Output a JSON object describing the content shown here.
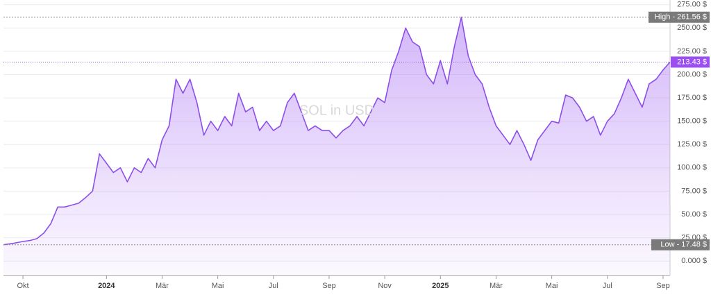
{
  "chart_data": {
    "type": "line",
    "title": "SOL in USD",
    "x": [
      -0.7,
      -0.35,
      0,
      0.25,
      0.5,
      0.75,
      1,
      1.25,
      1.5,
      1.75,
      2,
      2.25,
      2.5,
      2.75,
      3,
      3.25,
      3.5,
      3.75,
      4,
      4.25,
      4.5,
      4.75,
      5,
      5.25,
      5.5,
      5.75,
      6,
      6.25,
      6.5,
      6.75,
      7,
      7.25,
      7.5,
      7.75,
      8,
      8.25,
      8.5,
      8.75,
      9,
      9.25,
      9.5,
      9.75,
      10,
      10.25,
      10.5,
      10.75,
      11,
      11.25,
      11.5,
      11.75,
      12,
      12.25,
      12.5,
      12.75,
      13,
      13.25,
      13.5,
      13.75,
      14,
      14.25,
      14.5,
      14.75,
      15,
      15.25,
      15.5,
      15.75,
      16,
      16.25,
      16.5,
      16.75,
      17,
      17.25,
      17.5,
      17.75,
      18,
      18.25,
      18.5,
      18.75,
      19,
      19.25,
      19.5,
      19.75,
      20,
      20.25,
      20.5,
      20.75,
      21,
      21.25,
      21.5,
      21.75,
      22,
      22.25,
      22.5,
      22.75,
      23,
      23.25
    ],
    "series": [
      {
        "name": "SOL",
        "color": "#8c4ee8",
        "values": [
          17.48,
          19,
          21,
          22,
          24,
          30,
          40,
          58,
          58,
          60,
          62,
          68,
          75,
          115,
          105,
          95,
          100,
          85,
          100,
          95,
          110,
          100,
          130,
          145,
          195,
          180,
          195,
          170,
          135,
          150,
          140,
          155,
          145,
          180,
          160,
          165,
          140,
          150,
          140,
          145,
          170,
          180,
          160,
          140,
          145,
          140,
          140,
          132,
          140,
          145,
          155,
          145,
          160,
          175,
          170,
          205,
          225,
          250,
          235,
          230,
          200,
          190,
          215,
          190,
          230,
          261.56,
          220,
          200,
          190,
          165,
          145,
          135,
          125,
          140,
          125,
          108,
          130,
          140,
          150,
          148,
          178,
          175,
          165,
          150,
          155,
          135,
          150,
          158,
          175,
          195,
          180,
          165,
          190,
          195,
          205,
          213.43
        ]
      }
    ],
    "xlim": [
      -0.7,
      23.25
    ],
    "xticks": [
      {
        "value": 0,
        "label": "Okt"
      },
      {
        "value": 3,
        "label": "2024"
      },
      {
        "value": 5,
        "label": "Mär"
      },
      {
        "value": 7,
        "label": "Mai"
      },
      {
        "value": 9,
        "label": "Jul"
      },
      {
        "value": 11,
        "label": "Sep"
      },
      {
        "value": 13,
        "label": "Nov"
      },
      {
        "value": 15,
        "label": "2025"
      },
      {
        "value": 17,
        "label": "Mär"
      },
      {
        "value": 19,
        "label": "Mai"
      },
      {
        "value": 21,
        "label": "Jul"
      },
      {
        "value": 23,
        "label": "Sep"
      }
    ],
    "ylim": [
      -14,
      280
    ],
    "yticks": [
      {
        "value": 0,
        "label": "0.000 $"
      },
      {
        "value": 25,
        "label": "25.00 $"
      },
      {
        "value": 50,
        "label": "50.00 $"
      },
      {
        "value": 75,
        "label": "75.00 $"
      },
      {
        "value": 100,
        "label": "100.00 $"
      },
      {
        "value": 125,
        "label": "125.00 $"
      },
      {
        "value": 150,
        "label": "150.00 $"
      },
      {
        "value": 175,
        "label": "175.00 $"
      },
      {
        "value": 200,
        "label": "200.00 $"
      },
      {
        "value": 225,
        "label": "225.00 $"
      },
      {
        "value": 250,
        "label": "250.00 $"
      },
      {
        "value": 275,
        "label": "275.00 $"
      }
    ],
    "high": {
      "value": 261.56,
      "label": "High - 261.56 $"
    },
    "low": {
      "value": 17.48,
      "label": "Low - 17.48 $"
    },
    "last": {
      "value": 213.43,
      "label": "213.43 $"
    },
    "grid": true
  }
}
